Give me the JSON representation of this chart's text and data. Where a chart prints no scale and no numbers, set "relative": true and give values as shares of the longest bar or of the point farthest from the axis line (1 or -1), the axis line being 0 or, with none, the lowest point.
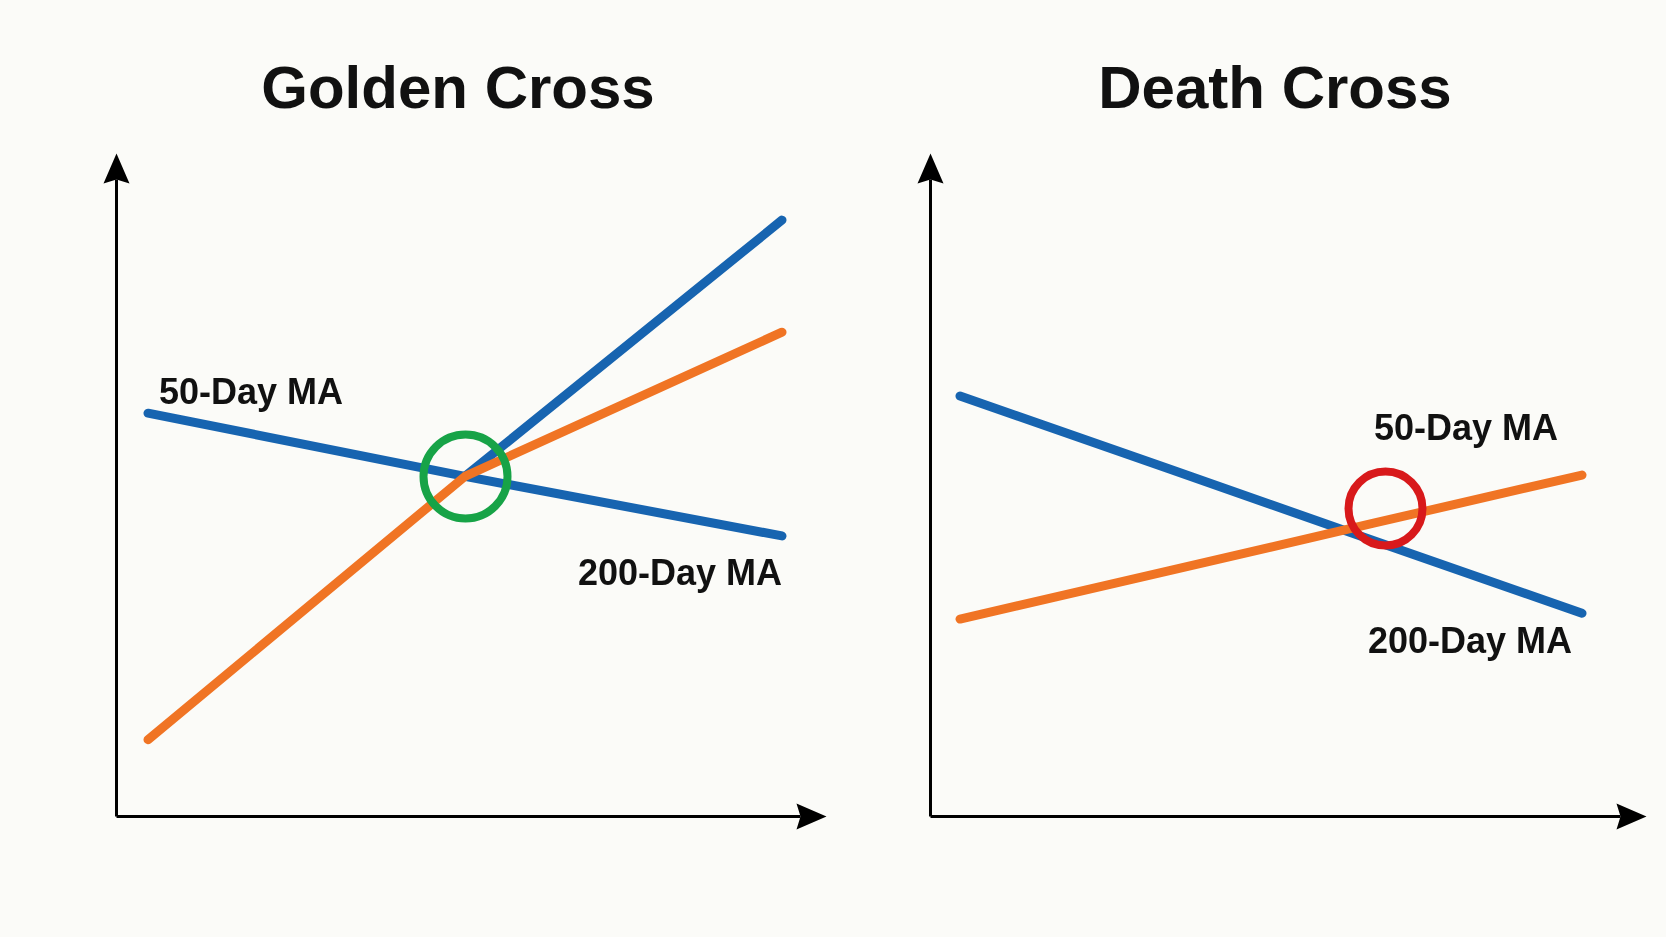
{
  "chart_data": [
    {
      "type": "line",
      "title": "Golden Cross",
      "relative": true,
      "categories": [
        null,
        null,
        null
      ],
      "annotations": [
        "50-Day MA",
        "200-Day MA"
      ],
      "series": [
        {
          "color": "#1764b0",
          "values": [
            0.676,
            0.57,
            0.47
          ]
        },
        {
          "color": "#1764b0",
          "values": [
            null,
            0.57,
            1
          ]
        },
        {
          "color": "#f07424",
          "values": [
            0.128,
            0.57,
            0.812
          ]
        }
      ]
    },
    {
      "type": "line",
      "title": "Death Cross",
      "relative": true,
      "categories": [
        null,
        null,
        null,
        null
      ],
      "annotations": [
        "50-Day MA",
        "200-Day MA"
      ],
      "series": [
        {
          "color": "#1764b0",
          "values": [
            1,
            0.828,
            0.655,
            0.483
          ]
        },
        {
          "color": "#f07424",
          "values": [
            0.469,
            0.583,
            0.698,
            0.812
          ]
        }
      ]
    }
  ]
}
